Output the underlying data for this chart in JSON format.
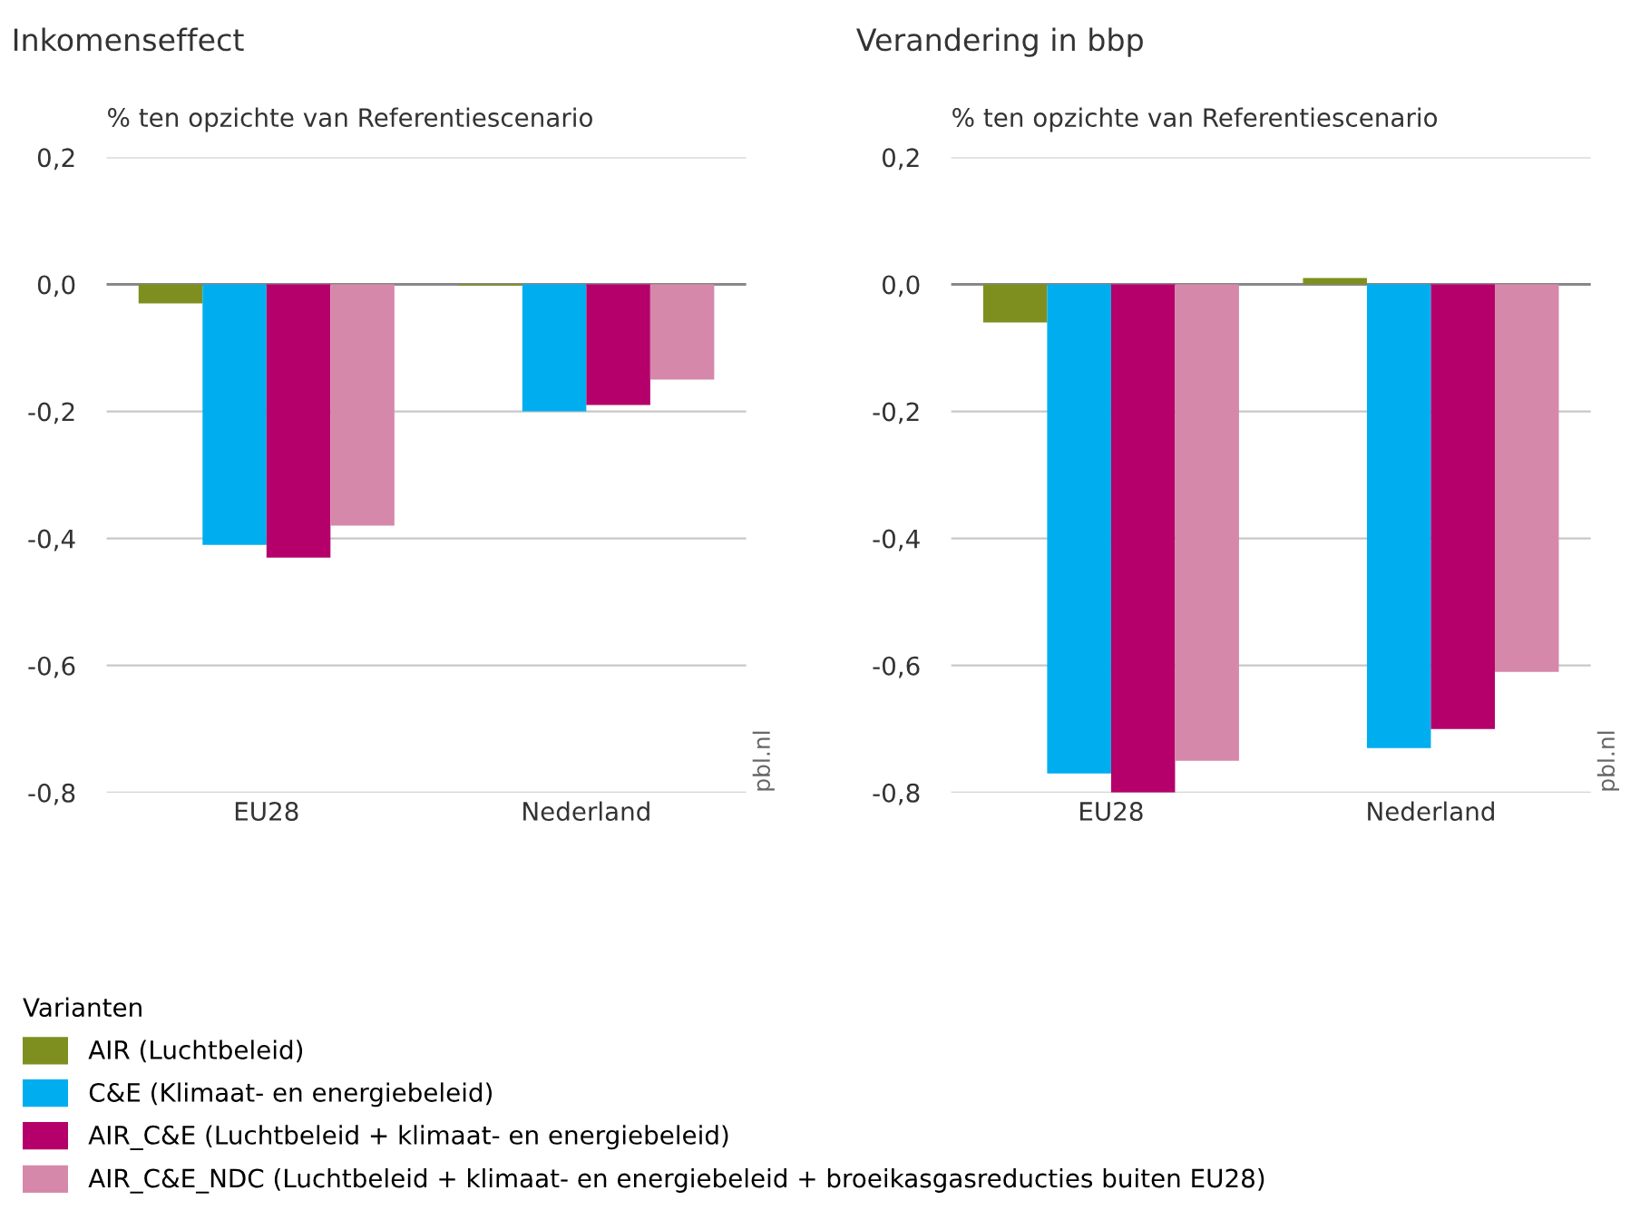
{
  "chart_data": [
    {
      "type": "bar",
      "title": "Inkomenseffect",
      "ylabel": "% ten opzichte van Referentiescenario",
      "categories": [
        "EU28",
        "Nederland"
      ],
      "series": [
        {
          "name": "AIR (Luchtbeleid)",
          "color": "#7f8f1f",
          "values": [
            -0.03,
            -0.002
          ]
        },
        {
          "name": "C&E (Klimaat- en energiebeleid)",
          "color": "#00aeef",
          "values": [
            -0.41,
            -0.2
          ]
        },
        {
          "name": "AIR_C&E (Luchtbeleid + klimaat- en energiebeleid)",
          "color": "#b5006b",
          "values": [
            -0.43,
            -0.19
          ]
        },
        {
          "name": "AIR_C&E_NDC (Luchtbeleid + klimaat- en energiebeleid + broeikasgasreducties buiten EU28)",
          "color": "#d688aa",
          "values": [
            -0.38,
            -0.15
          ]
        }
      ],
      "ylim": [
        -0.8,
        0.2
      ],
      "yticks": [
        {
          "value": -0.8,
          "label": "-0,8"
        },
        {
          "value": -0.6,
          "label": "-0,6"
        },
        {
          "value": -0.4,
          "label": "-0,4"
        },
        {
          "value": -0.2,
          "label": "-0,2"
        },
        {
          "value": 0,
          "label": "0,0"
        },
        {
          "value": 0.2,
          "label": "0,2"
        }
      ],
      "grid": "y",
      "legend": "bottom",
      "legend_title": "Varianten",
      "annotations": [
        "pbl.nl"
      ]
    },
    {
      "type": "bar",
      "title": "Verandering in bbp",
      "ylabel": "% ten opzichte van Referentiescenario",
      "categories": [
        "EU28",
        "Nederland"
      ],
      "series": [
        {
          "color": "#7f8f1f",
          "values": [
            -0.06,
            0.01
          ]
        },
        {
          "color": "#00aeef",
          "values": [
            -0.77,
            -0.73
          ]
        },
        {
          "color": "#b5006b",
          "values": [
            -0.8,
            -0.7
          ]
        },
        {
          "color": "#d688aa",
          "values": [
            -0.75,
            -0.61
          ]
        }
      ],
      "ylim": [
        -0.8,
        0.2
      ],
      "yticks": [
        {
          "value": -0.8,
          "label": "-0,8"
        },
        {
          "value": -0.6,
          "label": "-0,6"
        },
        {
          "value": -0.4,
          "label": "-0,4"
        },
        {
          "value": -0.2,
          "label": "-0,2"
        },
        {
          "value": 0,
          "label": "0,0"
        },
        {
          "value": 0.2,
          "label": "0,2"
        }
      ],
      "grid": "y",
      "annotations": [
        "pbl.nl"
      ]
    }
  ]
}
